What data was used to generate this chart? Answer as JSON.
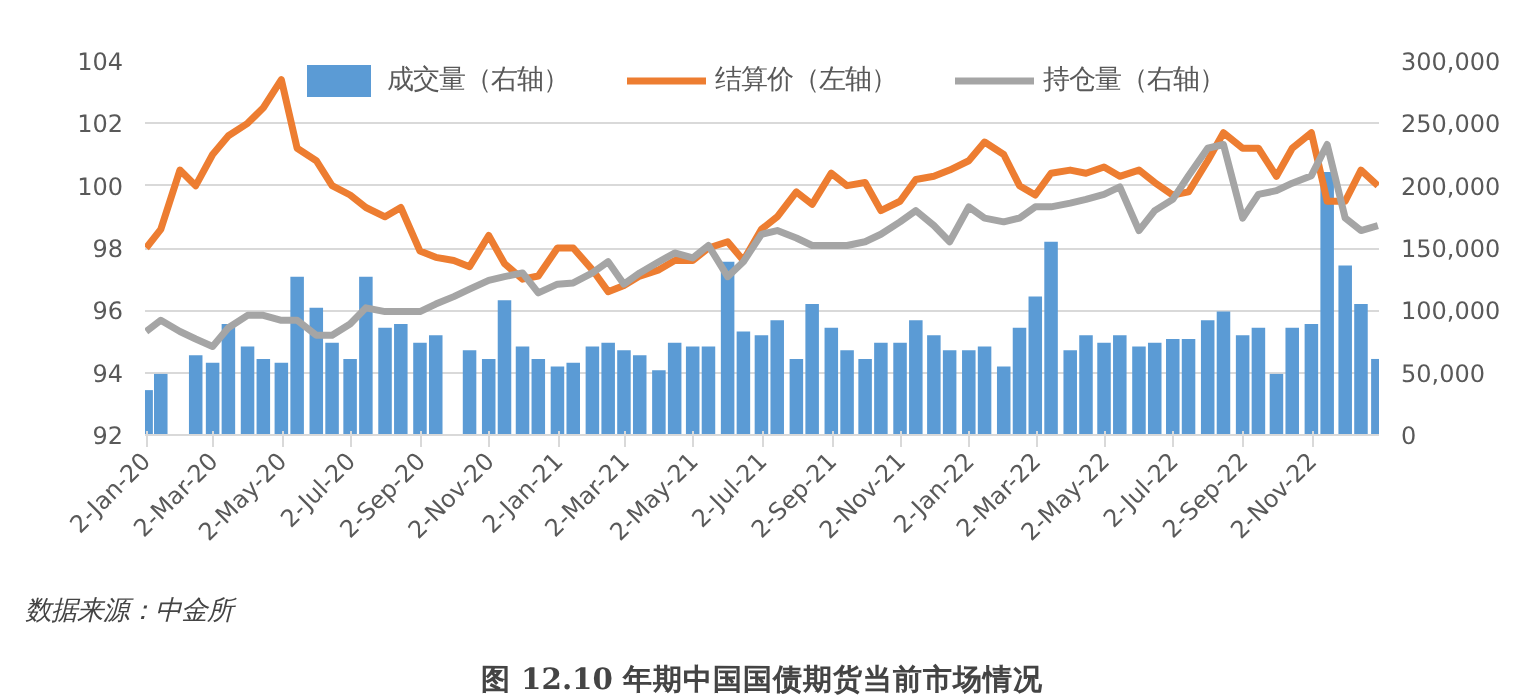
{
  "chart_data": {
    "type": "line",
    "title": "图 12.10 年期中国国债期货当前市场情况",
    "annotations": [
      "数据来源：中金所"
    ],
    "x": [
      "2020-01-02",
      "2020-01-15",
      "2020-02-01",
      "2020-02-15",
      "2020-03-01",
      "2020-03-15",
      "2020-04-01",
      "2020-04-15",
      "2020-05-01",
      "2020-05-15",
      "2020-06-01",
      "2020-06-15",
      "2020-07-01",
      "2020-07-15",
      "2020-08-01",
      "2020-08-15",
      "2020-09-01",
      "2020-09-15",
      "2020-10-01",
      "2020-10-15",
      "2020-11-01",
      "2020-11-15",
      "2020-12-01",
      "2020-12-15",
      "2021-01-01",
      "2021-01-15",
      "2021-02-01",
      "2021-02-15",
      "2021-03-01",
      "2021-03-15",
      "2021-04-01",
      "2021-04-15",
      "2021-05-01",
      "2021-05-15",
      "2021-06-01",
      "2021-06-15",
      "2021-07-01",
      "2021-07-15",
      "2021-08-01",
      "2021-08-15",
      "2021-09-01",
      "2021-09-15",
      "2021-10-01",
      "2021-10-15",
      "2021-11-01",
      "2021-11-15",
      "2021-12-01",
      "2021-12-15",
      "2022-01-01",
      "2022-01-15",
      "2022-02-01",
      "2022-02-15",
      "2022-03-01",
      "2022-03-15",
      "2022-04-01",
      "2022-04-15",
      "2022-05-01",
      "2022-05-15",
      "2022-06-01",
      "2022-06-15",
      "2022-07-01",
      "2022-07-15",
      "2022-08-01",
      "2022-08-15",
      "2022-09-01",
      "2022-09-15",
      "2022-10-01",
      "2022-10-15",
      "2022-11-01",
      "2022-11-15",
      "2022-12-01",
      "2022-12-15",
      "2022-12-30"
    ],
    "series": [
      {
        "name": "成交量（右轴）",
        "type": "bar",
        "axis": "y2",
        "color": "#5b9bd5",
        "values": [
          36000,
          49000,
          null,
          64000,
          58000,
          89000,
          71000,
          61000,
          58000,
          127000,
          102000,
          74000,
          61000,
          127000,
          86000,
          89000,
          74000,
          80000,
          null,
          68000,
          61000,
          108000,
          71000,
          61000,
          55000,
          58000,
          71000,
          74000,
          68000,
          64000,
          52000,
          74000,
          71000,
          71000,
          139000,
          83000,
          80000,
          92000,
          61000,
          105000,
          86000,
          68000,
          61000,
          74000,
          74000,
          92000,
          80000,
          68000,
          68000,
          71000,
          55000,
          86000,
          111000,
          155000,
          68000,
          80000,
          74000,
          80000,
          71000,
          74000,
          77000,
          77000,
          92000,
          99000,
          80000,
          86000,
          49000,
          86000,
          89000,
          211000,
          136000,
          105000,
          61000
        ]
      },
      {
        "name": "结算价（左轴）",
        "color": "#ed7d31",
        "values": [
          98.0,
          98.6,
          100.5,
          100.0,
          101.0,
          101.6,
          102.0,
          102.5,
          103.4,
          101.2,
          100.8,
          100.0,
          99.7,
          99.3,
          99.0,
          99.3,
          97.9,
          97.7,
          97.6,
          97.4,
          98.4,
          97.5,
          97.0,
          97.1,
          98.0,
          98.0,
          97.3,
          96.6,
          96.8,
          97.1,
          97.3,
          97.6,
          97.6,
          98.0,
          98.2,
          97.6,
          98.6,
          99.0,
          99.8,
          99.4,
          100.4,
          100.0,
          100.1,
          99.2,
          99.5,
          100.2,
          100.3,
          100.5,
          100.8,
          101.4,
          101.0,
          100.0,
          99.7,
          100.4,
          100.5,
          100.4,
          100.6,
          100.3,
          100.5,
          100.1,
          99.7,
          99.8,
          100.8,
          101.7,
          101.2,
          101.2,
          100.3,
          101.2,
          101.7,
          99.5,
          99.5,
          100.5,
          100.0
        ]
      },
      {
        "name": "持仓量（右轴）",
        "axis": "y2",
        "color": "#a5a5a5",
        "values": [
          83000,
          92000,
          83000,
          77000,
          71000,
          86000,
          96000,
          96000,
          92000,
          92000,
          80000,
          80000,
          89000,
          102000,
          99000,
          99000,
          99000,
          105000,
          111000,
          117000,
          124000,
          127000,
          130000,
          114000,
          121000,
          122000,
          130000,
          139000,
          121000,
          130000,
          139000,
          146000,
          142000,
          152000,
          127000,
          139000,
          161000,
          164000,
          158000,
          152000,
          152000,
          152000,
          155000,
          161000,
          171000,
          180000,
          168000,
          155000,
          183000,
          174000,
          171000,
          174000,
          183000,
          183000,
          186000,
          189000,
          193000,
          199000,
          164000,
          180000,
          189000,
          208000,
          230000,
          233000,
          174000,
          193000,
          196000,
          202000,
          208000,
          233000,
          174000,
          164000,
          168000
        ]
      }
    ],
    "xlim": [
      "2020-01-01",
      "2022-12-31"
    ],
    "xticks": [
      {
        "value": "2020-01-02",
        "label": "2-Jan-20"
      },
      {
        "value": "2020-03-02",
        "label": "2-Mar-20"
      },
      {
        "value": "2020-05-02",
        "label": "2-May-20"
      },
      {
        "value": "2020-07-02",
        "label": "2-Jul-20"
      },
      {
        "value": "2020-09-02",
        "label": "2-Sep-20"
      },
      {
        "value": "2020-11-02",
        "label": "2-Nov-20"
      },
      {
        "value": "2021-01-02",
        "label": "2-Jan-21"
      },
      {
        "value": "2021-03-02",
        "label": "2-Mar-21"
      },
      {
        "value": "2021-05-02",
        "label": "2-May-21"
      },
      {
        "value": "2021-07-02",
        "label": "2-Jul-21"
      },
      {
        "value": "2021-09-02",
        "label": "2-Sep-21"
      },
      {
        "value": "2021-11-02",
        "label": "2-Nov-21"
      },
      {
        "value": "2022-01-02",
        "label": "2-Jan-22"
      },
      {
        "value": "2022-03-02",
        "label": "2-Mar-22"
      },
      {
        "value": "2022-05-02",
        "label": "2-May-22"
      },
      {
        "value": "2022-07-02",
        "label": "2-Jul-22"
      },
      {
        "value": "2022-09-02",
        "label": "2-Sep-22"
      },
      {
        "value": "2022-11-02",
        "label": "2-Nov-22"
      }
    ],
    "ylim": [
      92,
      104
    ],
    "yticks": [
      92,
      94,
      96,
      98,
      100,
      102,
      104
    ],
    "y2lim": [
      0,
      300000
    ],
    "y2ticks": [
      {
        "value": 0,
        "label": "0"
      },
      {
        "value": 50000,
        "label": "50,000"
      },
      {
        "value": 100000,
        "label": "100,000"
      },
      {
        "value": 150000,
        "label": "150,000"
      },
      {
        "value": 200000,
        "label": "200,000"
      },
      {
        "value": 250000,
        "label": "250,000"
      },
      {
        "value": 300000,
        "label": "300,000"
      }
    ],
    "grid": "y",
    "legend": "top"
  }
}
